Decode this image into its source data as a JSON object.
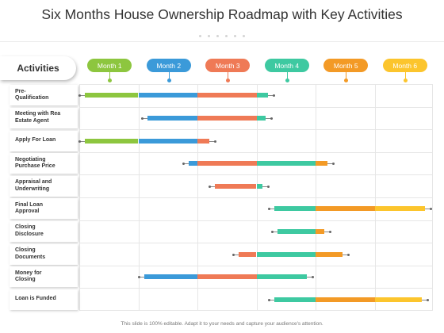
{
  "title": "Six Months House Ownership Roadmap with Key Activities",
  "activities_header": "Activities",
  "months": [
    {
      "label": "Month 1",
      "color": "#8dc63f"
    },
    {
      "label": "Month 2",
      "color": "#3b9ad9"
    },
    {
      "label": "Month 3",
      "color": "#ef7a56"
    },
    {
      "label": "Month 4",
      "color": "#3ec9a1"
    },
    {
      "label": "Month 5",
      "color": "#f39a26"
    },
    {
      "label": "Month 6",
      "color": "#fcc52d"
    }
  ],
  "activities": [
    {
      "label": "Pre-\nQualification",
      "start": 0.1,
      "end": 3.2
    },
    {
      "label": "Meeting with Rea\nEstate Agent",
      "start": 1.15,
      "end": 3.15
    },
    {
      "label": "Apply For Loan",
      "start": 0.1,
      "end": 2.2
    },
    {
      "label": "Negotiating\nPurchase Price",
      "start": 1.85,
      "end": 4.2
    },
    {
      "label": "Appraisal and\nUnderwriting",
      "start": 2.3,
      "end": 3.1
    },
    {
      "label": "Final Loan\nApproval",
      "start": 3.3,
      "end": 5.85
    },
    {
      "label": "Closing\nDisclosure",
      "start": 3.35,
      "end": 4.15
    },
    {
      "label": "Closing\nDocuments",
      "start": 2.7,
      "end": 4.45
    },
    {
      "label": "Money for\nClosing",
      "start": 1.1,
      "end": 3.85
    },
    {
      "label": "Loan is Funded",
      "start": 3.3,
      "end": 5.8
    }
  ],
  "footer": "This slide is 100% editable. Adapt it to your needs and capture your audience's attention."
}
